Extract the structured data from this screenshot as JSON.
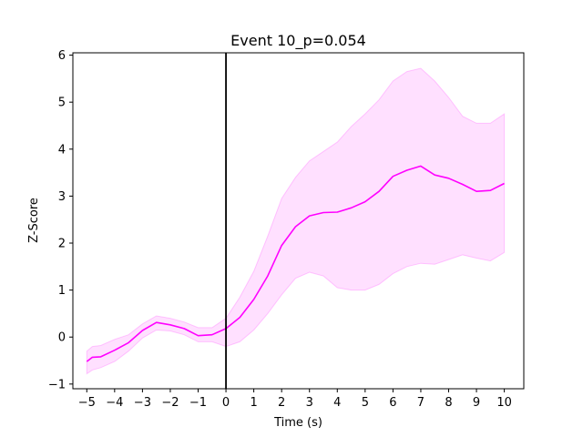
{
  "chart_data": {
    "type": "line",
    "title": "Event 10_p=0.054",
    "xlabel": "Time (s)",
    "ylabel": "Z-Score",
    "xlim": [
      -5.5,
      10.7
    ],
    "ylim": [
      -1.1,
      6.05
    ],
    "xticks": [
      -5,
      -4,
      -3,
      -2,
      -1,
      0,
      1,
      2,
      3,
      4,
      5,
      6,
      7,
      8,
      9,
      10
    ],
    "yticks": [
      -1,
      0,
      1,
      2,
      3,
      4,
      5,
      6
    ],
    "event_line_x": 0,
    "grid": false,
    "legend": "none",
    "colors": {
      "mean": "#ff00ff",
      "band": "#ff00ff",
      "event_line": "#000000"
    },
    "series": [
      {
        "x": [
          -5,
          -4.8,
          -4.5,
          -4,
          -3.5,
          -3,
          -2.5,
          -2,
          -1.5,
          -1,
          -0.5,
          0,
          0.5,
          1,
          1.5,
          2,
          2.5,
          3,
          3.5,
          4,
          4.5,
          5,
          5.5,
          6,
          6.5,
          7,
          7.5,
          8,
          8.5,
          9,
          9.5,
          10
        ],
        "y": [
          -0.52,
          -0.43,
          -0.42,
          -0.28,
          -0.12,
          0.14,
          0.31,
          0.26,
          0.18,
          0.03,
          0.05,
          0.18,
          0.42,
          0.8,
          1.3,
          1.95,
          2.35,
          2.58,
          2.65,
          2.66,
          2.75,
          2.88,
          3.1,
          3.42,
          3.55,
          3.64,
          3.45,
          3.38,
          3.25,
          3.1,
          3.12,
          3.27
        ],
        "lower": [
          -0.78,
          -0.7,
          -0.65,
          -0.52,
          -0.3,
          -0.02,
          0.15,
          0.13,
          0.05,
          -0.1,
          -0.1,
          -0.2,
          -0.1,
          0.15,
          0.5,
          0.9,
          1.25,
          1.38,
          1.3,
          1.05,
          1.0,
          1.0,
          1.12,
          1.35,
          1.5,
          1.57,
          1.55,
          1.65,
          1.75,
          1.68,
          1.62,
          1.8
        ],
        "upper": [
          -0.3,
          -0.2,
          -0.18,
          -0.05,
          0.05,
          0.28,
          0.45,
          0.4,
          0.32,
          0.2,
          0.2,
          0.4,
          0.85,
          1.4,
          2.15,
          2.95,
          3.4,
          3.75,
          3.95,
          4.15,
          4.48,
          4.75,
          5.05,
          5.45,
          5.65,
          5.72,
          5.45,
          5.1,
          4.7,
          4.55,
          4.55,
          4.75
        ]
      }
    ]
  }
}
